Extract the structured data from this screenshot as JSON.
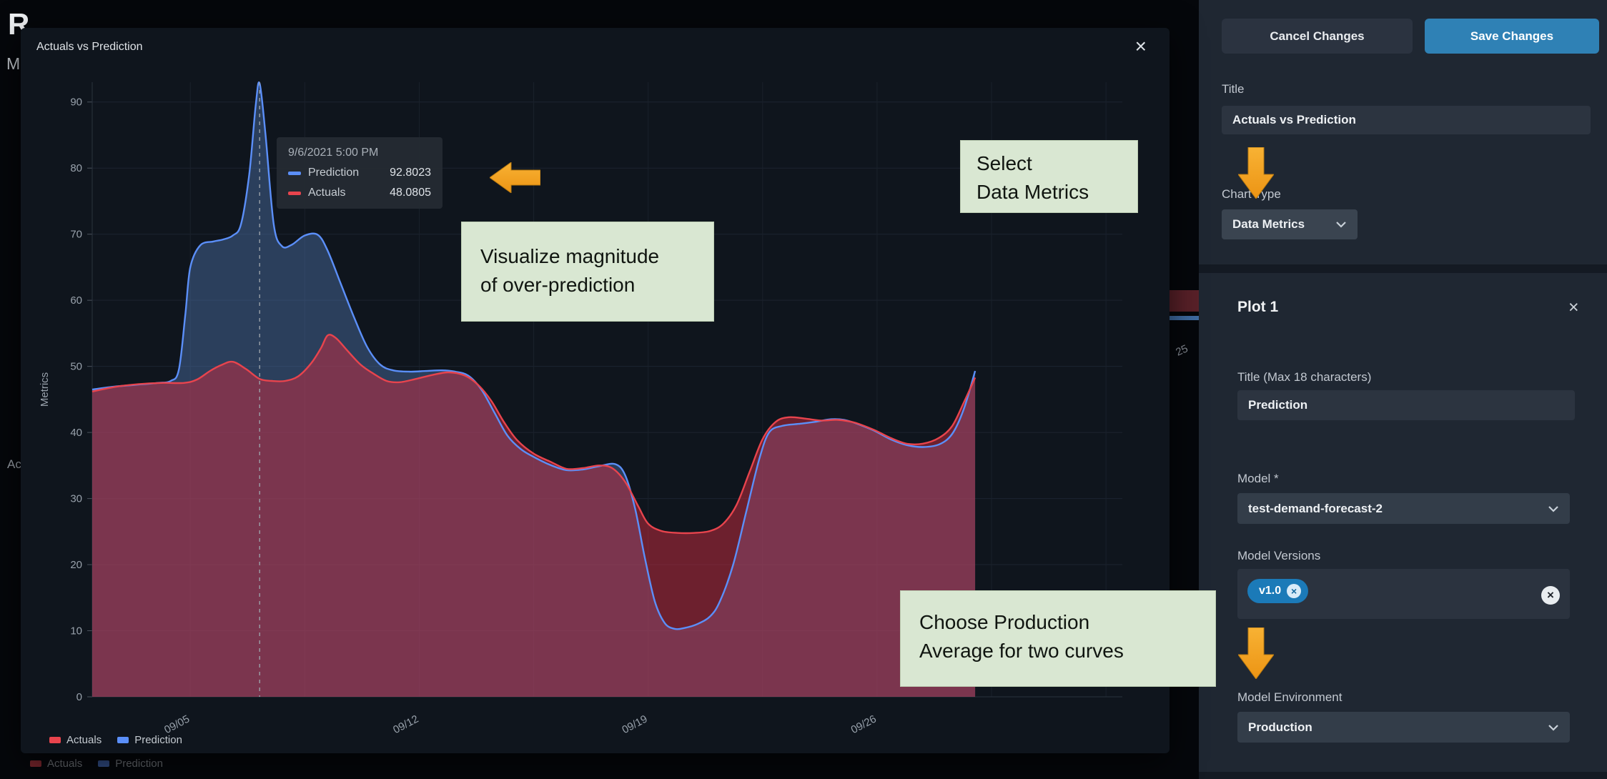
{
  "page": {
    "bg_title_partial": "R",
    "bg_subtitle_partial": "M",
    "bg_left_text_partial": "Ac",
    "bg_gap_label": "25",
    "bg_legend": {
      "actuals": "Actuals",
      "prediction": "Prediction"
    }
  },
  "modal": {
    "title": "Actuals vs Prediction",
    "close_icon": "×",
    "legend": [
      {
        "label": "Actuals",
        "color": "#e8444d"
      },
      {
        "label": "Prediction",
        "color": "#5b8ff9"
      }
    ],
    "tooltip": {
      "timestamp": "9/6/2021 5:00 PM",
      "rows": [
        {
          "label": "Prediction",
          "value": "92.8023",
          "color": "#5b8ff9"
        },
        {
          "label": "Actuals",
          "value": "48.0805",
          "color": "#e8444d"
        }
      ]
    }
  },
  "chart_data": {
    "type": "area",
    "title": "Actuals vs Prediction",
    "xlabel": "",
    "ylabel": "Metrics",
    "ylim": [
      0,
      93
    ],
    "yticks": [
      0,
      10,
      20,
      30,
      40,
      50,
      60,
      70,
      80,
      90
    ],
    "x_unit": "day of September 2021",
    "xlim": [
      2,
      33.5
    ],
    "xticks": [
      {
        "x": 5,
        "label": "09/05"
      },
      {
        "x": 12,
        "label": "09/12"
      },
      {
        "x": 19,
        "label": "09/19"
      },
      {
        "x": 26,
        "label": "09/26"
      }
    ],
    "x_grid_step": 3.5,
    "grid": true,
    "legend_position": "bottom-left",
    "cursor_x": 7.12,
    "series": [
      {
        "name": "Prediction",
        "color": "#5b8ff9",
        "fill": "rgba(78,116,170,0.45)",
        "points": [
          [
            2.0,
            46.5
          ],
          [
            2.6,
            46.9
          ],
          [
            3.3,
            47.2
          ],
          [
            4.0,
            47.5
          ],
          [
            4.4,
            47.8
          ],
          [
            4.65,
            49.5
          ],
          [
            4.85,
            58
          ],
          [
            5.0,
            65
          ],
          [
            5.3,
            68.3
          ],
          [
            5.7,
            68.9
          ],
          [
            6.0,
            69.2
          ],
          [
            6.3,
            69.8
          ],
          [
            6.55,
            71.5
          ],
          [
            6.8,
            79
          ],
          [
            7.0,
            89.5
          ],
          [
            7.12,
            92.8
          ],
          [
            7.3,
            85
          ],
          [
            7.55,
            71.5
          ],
          [
            7.8,
            68.2
          ],
          [
            8.1,
            68.4
          ],
          [
            8.5,
            69.8
          ],
          [
            8.9,
            69.9
          ],
          [
            9.2,
            67.5
          ],
          [
            9.6,
            62.5
          ],
          [
            10.0,
            57.5
          ],
          [
            10.4,
            53
          ],
          [
            10.8,
            50.3
          ],
          [
            11.2,
            49.4
          ],
          [
            11.7,
            49.2
          ],
          [
            12.2,
            49.3
          ],
          [
            12.7,
            49.4
          ],
          [
            13.1,
            49.2
          ],
          [
            13.5,
            48.6
          ],
          [
            13.9,
            46.5
          ],
          [
            14.3,
            43
          ],
          [
            14.7,
            39.5
          ],
          [
            15.1,
            37.5
          ],
          [
            15.5,
            36.3
          ],
          [
            16.0,
            35.1
          ],
          [
            16.5,
            34.3
          ],
          [
            17.0,
            34.4
          ],
          [
            17.5,
            34.9
          ],
          [
            18.0,
            35.2
          ],
          [
            18.3,
            33.5
          ],
          [
            18.6,
            28.5
          ],
          [
            18.9,
            21
          ],
          [
            19.2,
            14.5
          ],
          [
            19.5,
            11.2
          ],
          [
            19.8,
            10.3
          ],
          [
            20.1,
            10.4
          ],
          [
            20.5,
            11
          ],
          [
            20.9,
            12.2
          ],
          [
            21.2,
            14.5
          ],
          [
            21.6,
            20
          ],
          [
            22.0,
            28
          ],
          [
            22.4,
            36
          ],
          [
            22.7,
            40
          ],
          [
            23.1,
            41
          ],
          [
            23.6,
            41.3
          ],
          [
            24.1,
            41.6
          ],
          [
            24.6,
            42
          ],
          [
            25.0,
            41.9
          ],
          [
            25.4,
            41.3
          ],
          [
            25.9,
            40.3
          ],
          [
            26.4,
            39
          ],
          [
            26.9,
            38.1
          ],
          [
            27.4,
            37.8
          ],
          [
            27.9,
            38.2
          ],
          [
            28.3,
            39.8
          ],
          [
            28.65,
            43.5
          ],
          [
            29.0,
            49.3
          ]
        ]
      },
      {
        "name": "Actuals",
        "color": "#e8444d",
        "fill": "rgba(203,44,64,0.50)",
        "points": [
          [
            2.0,
            46.2
          ],
          [
            2.7,
            46.9
          ],
          [
            3.4,
            47.3
          ],
          [
            4.1,
            47.5
          ],
          [
            4.8,
            47.5
          ],
          [
            5.2,
            48
          ],
          [
            5.6,
            49.3
          ],
          [
            5.95,
            50.2
          ],
          [
            6.3,
            50.7
          ],
          [
            6.7,
            49.6
          ],
          [
            7.12,
            48.1
          ],
          [
            7.5,
            47.8
          ],
          [
            7.9,
            47.8
          ],
          [
            8.3,
            48.5
          ],
          [
            8.7,
            50.5
          ],
          [
            9.0,
            52.8
          ],
          [
            9.2,
            54.7
          ],
          [
            9.45,
            54.3
          ],
          [
            9.8,
            52.4
          ],
          [
            10.2,
            50.3
          ],
          [
            10.6,
            48.9
          ],
          [
            11.0,
            47.8
          ],
          [
            11.4,
            47.6
          ],
          [
            11.9,
            48.1
          ],
          [
            12.4,
            48.7
          ],
          [
            12.9,
            49.1
          ],
          [
            13.4,
            48.6
          ],
          [
            13.8,
            47.2
          ],
          [
            14.2,
            44.8
          ],
          [
            14.6,
            41.5
          ],
          [
            15.0,
            38.8
          ],
          [
            15.5,
            36.8
          ],
          [
            16.0,
            35.6
          ],
          [
            16.5,
            34.5
          ],
          [
            17.0,
            34.6
          ],
          [
            17.5,
            35.0
          ],
          [
            17.9,
            34.6
          ],
          [
            18.3,
            32.5
          ],
          [
            18.7,
            28.8
          ],
          [
            19.0,
            26.2
          ],
          [
            19.4,
            25.1
          ],
          [
            19.9,
            24.8
          ],
          [
            20.4,
            24.8
          ],
          [
            20.9,
            25.1
          ],
          [
            21.3,
            26.2
          ],
          [
            21.7,
            29
          ],
          [
            22.1,
            34
          ],
          [
            22.5,
            39
          ],
          [
            22.9,
            41.6
          ],
          [
            23.3,
            42.3
          ],
          [
            23.8,
            42.1
          ],
          [
            24.3,
            41.8
          ],
          [
            24.8,
            41.9
          ],
          [
            25.3,
            41.5
          ],
          [
            25.9,
            40.4
          ],
          [
            26.4,
            39.2
          ],
          [
            26.9,
            38.3
          ],
          [
            27.4,
            38.3
          ],
          [
            27.9,
            39.2
          ],
          [
            28.3,
            41
          ],
          [
            28.65,
            44.5
          ],
          [
            29.0,
            48.3
          ]
        ]
      }
    ]
  },
  "annotations": {
    "select_line1": "Select",
    "select_line2": "Data Metrics",
    "visualize_line1": "Visualize magnitude",
    "visualize_line2": "of over-prediction",
    "choose_line1": "Choose Production",
    "choose_line2": "Average for two curves",
    "accent_color": "#f2a124"
  },
  "panel": {
    "cancel_button": "Cancel Changes",
    "save_button": "Save Changes",
    "save_color": "#2f81b5",
    "title_label": "Title",
    "title_value": "Actuals vs Prediction",
    "chart_type_label": "Chart Type",
    "chart_type_value": "Data Metrics",
    "plot1": {
      "heading": "Plot 1",
      "close_icon": "×",
      "plot_title_label": "Title (Max 18 characters)",
      "plot_title_value": "Prediction",
      "model_label": "Model *",
      "model_value": "test-demand-forecast-2",
      "versions_label": "Model Versions",
      "version_tag": "v1.0",
      "remove_icon": "×",
      "clear_icon": "×",
      "environment_label": "Model Environment",
      "environment_value": "Production"
    }
  }
}
